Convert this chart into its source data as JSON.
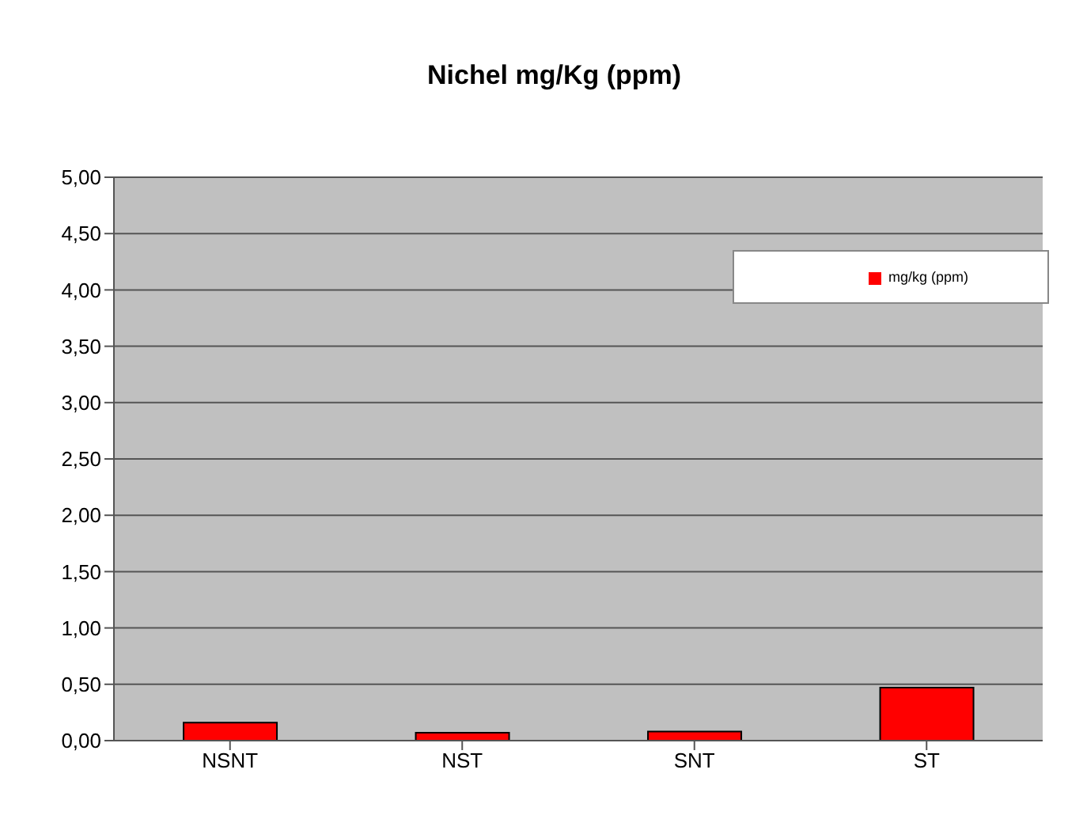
{
  "chart_data": {
    "type": "bar",
    "title": "Nichel mg/Kg (ppm)",
    "categories": [
      "NSNT",
      "NST",
      "SNT",
      "ST"
    ],
    "series": [
      {
        "name": "mg/kg (ppm)",
        "color": "#ff0000",
        "values": [
          0.16,
          0.07,
          0.08,
          0.47
        ]
      }
    ],
    "ylim": [
      0,
      5
    ],
    "yticks": [
      {
        "value": 0,
        "label": "0,00"
      },
      {
        "value": 0.5,
        "label": "0,50"
      },
      {
        "value": 1,
        "label": "1,00"
      },
      {
        "value": 1.5,
        "label": "1,50"
      },
      {
        "value": 2,
        "label": "2,00"
      },
      {
        "value": 2.5,
        "label": "2,50"
      },
      {
        "value": 3,
        "label": "3,00"
      },
      {
        "value": 3.5,
        "label": "3,50"
      },
      {
        "value": 4,
        "label": "4,00"
      },
      {
        "value": 4.5,
        "label": "4,50"
      },
      {
        "value": 5,
        "label": "5,00"
      }
    ],
    "grid": "y",
    "legend": "top right"
  }
}
